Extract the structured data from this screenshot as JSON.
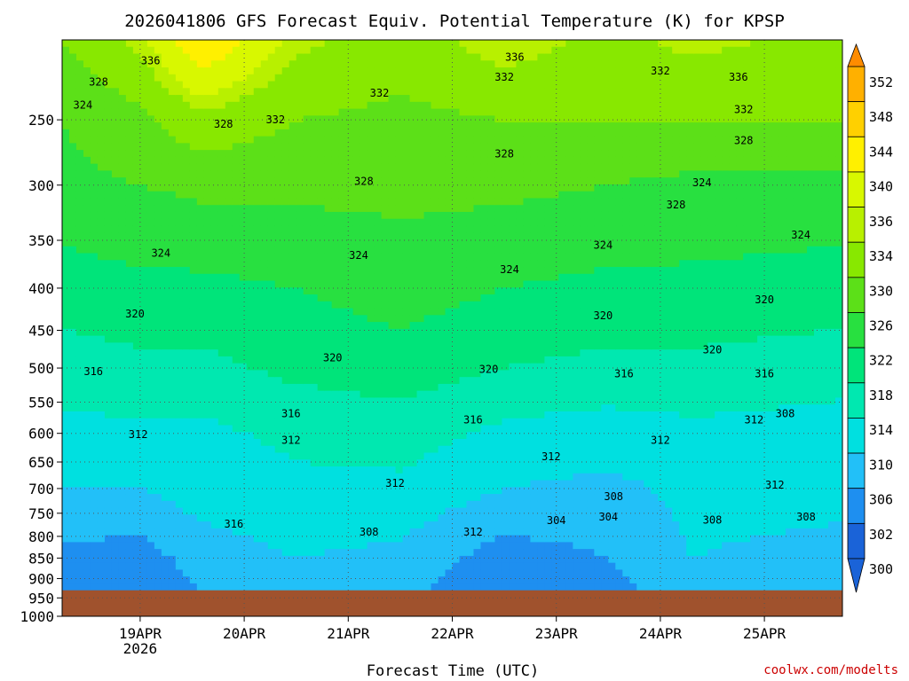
{
  "chart_data": {
    "type": "heatmap",
    "title": "2026041806 GFS Forecast Equiv. Potential Temperature (K) for KPSP",
    "xlabel": "Forecast Time (UTC)",
    "ylabel": "",
    "y_scale": "log (pressure, hPa)",
    "ylim": [
      1000,
      200
    ],
    "y_ticks": [
      {
        "value": 250,
        "label": "250"
      },
      {
        "value": 300,
        "label": "300"
      },
      {
        "value": 350,
        "label": "350"
      },
      {
        "value": 400,
        "label": "400"
      },
      {
        "value": 450,
        "label": "450"
      },
      {
        "value": 500,
        "label": "500"
      },
      {
        "value": 550,
        "label": "550"
      },
      {
        "value": 600,
        "label": "600"
      },
      {
        "value": 650,
        "label": "650"
      },
      {
        "value": 700,
        "label": "700"
      },
      {
        "value": 750,
        "label": "750"
      },
      {
        "value": 800,
        "label": "800"
      },
      {
        "value": 850,
        "label": "850"
      },
      {
        "value": 900,
        "label": "900"
      },
      {
        "value": 950,
        "label": "950"
      },
      {
        "value": 1000,
        "label": "1000"
      }
    ],
    "x_ticks": [
      {
        "day": 1,
        "label": "19APR",
        "sub": "2026"
      },
      {
        "day": 2,
        "label": "20APR"
      },
      {
        "day": 3,
        "label": "21APR"
      },
      {
        "day": 4,
        "label": "22APR"
      },
      {
        "day": 5,
        "label": "23APR"
      },
      {
        "day": 6,
        "label": "24APR"
      },
      {
        "day": 7,
        "label": "25APR"
      }
    ],
    "x_range_days": [
      0.25,
      7.75
    ],
    "grid": true,
    "surface_pressure": 930,
    "colorbar": {
      "levels": [
        300,
        302,
        306,
        310,
        314,
        318,
        322,
        326,
        330,
        334,
        336,
        340,
        344,
        348,
        352
      ],
      "tick_labels": [
        "352",
        "348",
        "344",
        "340",
        "336",
        "334",
        "330",
        "326",
        "322",
        "318",
        "314",
        "310",
        "306",
        "302",
        "300"
      ],
      "colors": {
        "300": "#1a63d8",
        "302": "#1e8ff0",
        "306": "#22c0f8",
        "310": "#00e0e0",
        "314": "#00e8b0",
        "318": "#00e47a",
        "322": "#28e040",
        "326": "#5ce018",
        "330": "#88e800",
        "334": "#b8f000",
        "336": "#d8f800",
        "340": "#fff000",
        "344": "#ffd000",
        "348": "#ffb000",
        "352": "#ff9a00"
      },
      "below_color": "#1a63d8",
      "above_color": "#ff8c00"
    },
    "surface_color": "#a0522d",
    "profiles": [
      {
        "time_days": 0.25,
        "pressures": [
          930,
          850,
          700,
          600,
          500,
          400,
          300,
          250,
          200
        ],
        "thetae": [
          304,
          305,
          310,
          313,
          316,
          320,
          325,
          326,
          330
        ]
      },
      {
        "time_days": 1.0,
        "pressures": [
          930,
          850,
          700,
          600,
          500,
          400,
          300,
          250,
          200
        ],
        "thetae": [
          303,
          304,
          310,
          313,
          317,
          321,
          326,
          329,
          335
        ]
      },
      {
        "time_days": 1.6,
        "pressures": [
          930,
          850,
          700,
          600,
          500,
          400,
          300,
          250,
          200
        ],
        "thetae": [
          306,
          308,
          312,
          313,
          317,
          321,
          327,
          333,
          344
        ]
      },
      {
        "time_days": 2.5,
        "pressures": [
          930,
          850,
          700,
          600,
          500,
          400,
          300,
          250,
          200
        ],
        "thetae": [
          308,
          310,
          313,
          315,
          319,
          322,
          327,
          330,
          335
        ]
      },
      {
        "time_days": 3.5,
        "pressures": [
          930,
          850,
          700,
          600,
          500,
          400,
          300,
          250,
          200
        ],
        "thetae": [
          307,
          309,
          313,
          316,
          320,
          324,
          327,
          329,
          332
        ]
      },
      {
        "time_days": 4.5,
        "pressures": [
          930,
          850,
          700,
          600,
          500,
          400,
          300,
          250,
          200
        ],
        "thetae": [
          303,
          304,
          310,
          313,
          318,
          322,
          327,
          330,
          336
        ]
      },
      {
        "time_days": 5.5,
        "pressures": [
          930,
          850,
          700,
          600,
          500,
          400,
          300,
          250,
          200
        ],
        "thetae": [
          304,
          306,
          309,
          312,
          317,
          321,
          326,
          330,
          333
        ]
      },
      {
        "time_days": 6.3,
        "pressures": [
          930,
          850,
          700,
          600,
          500,
          400,
          300,
          250,
          200
        ],
        "thetae": [
          309,
          310,
          311,
          313,
          317,
          321,
          325,
          330,
          335
        ]
      },
      {
        "time_days": 7.75,
        "pressures": [
          930,
          850,
          700,
          600,
          500,
          400,
          300,
          250,
          200
        ],
        "thetae": [
          308,
          309,
          311,
          312,
          316,
          320,
          325,
          330,
          333
        ]
      }
    ],
    "contour_labels": [
      {
        "text": "336",
        "day": 1.1,
        "p": 212
      },
      {
        "text": "328",
        "day": 0.6,
        "p": 225
      },
      {
        "text": "324",
        "day": 0.45,
        "p": 240
      },
      {
        "text": "328",
        "day": 1.8,
        "p": 253
      },
      {
        "text": "332",
        "day": 2.3,
        "p": 250
      },
      {
        "text": "332",
        "day": 3.3,
        "p": 232
      },
      {
        "text": "336",
        "day": 4.6,
        "p": 210
      },
      {
        "text": "332",
        "day": 4.5,
        "p": 222
      },
      {
        "text": "332",
        "day": 6.0,
        "p": 218
      },
      {
        "text": "336",
        "day": 6.75,
        "p": 222
      },
      {
        "text": "332",
        "day": 6.8,
        "p": 243
      },
      {
        "text": "328",
        "day": 4.5,
        "p": 275
      },
      {
        "text": "328",
        "day": 3.15,
        "p": 297
      },
      {
        "text": "328",
        "day": 6.8,
        "p": 265
      },
      {
        "text": "324",
        "day": 6.4,
        "p": 298
      },
      {
        "text": "328",
        "day": 6.15,
        "p": 317
      },
      {
        "text": "324",
        "day": 1.2,
        "p": 363
      },
      {
        "text": "324",
        "day": 3.1,
        "p": 365
      },
      {
        "text": "324",
        "day": 5.45,
        "p": 355
      },
      {
        "text": "324",
        "day": 4.55,
        "p": 380
      },
      {
        "text": "324",
        "day": 7.35,
        "p": 345
      },
      {
        "text": "320",
        "day": 0.95,
        "p": 430
      },
      {
        "text": "320",
        "day": 5.45,
        "p": 432
      },
      {
        "text": "320",
        "day": 7.0,
        "p": 413
      },
      {
        "text": "320",
        "day": 2.85,
        "p": 486
      },
      {
        "text": "320",
        "day": 4.35,
        "p": 502
      },
      {
        "text": "320",
        "day": 6.5,
        "p": 475
      },
      {
        "text": "316",
        "day": 0.55,
        "p": 505
      },
      {
        "text": "316",
        "day": 5.65,
        "p": 508
      },
      {
        "text": "316",
        "day": 7.0,
        "p": 508
      },
      {
        "text": "316",
        "day": 2.45,
        "p": 568
      },
      {
        "text": "316",
        "day": 4.2,
        "p": 578
      },
      {
        "text": "312",
        "day": 0.98,
        "p": 602
      },
      {
        "text": "312",
        "day": 2.45,
        "p": 612
      },
      {
        "text": "312",
        "day": 4.95,
        "p": 640
      },
      {
        "text": "312",
        "day": 6.0,
        "p": 612
      },
      {
        "text": "312",
        "day": 6.9,
        "p": 578
      },
      {
        "text": "308",
        "day": 7.2,
        "p": 568
      },
      {
        "text": "312",
        "day": 3.45,
        "p": 690
      },
      {
        "text": "312",
        "day": 7.1,
        "p": 693
      },
      {
        "text": "308",
        "day": 5.55,
        "p": 716
      },
      {
        "text": "316",
        "day": 1.9,
        "p": 773
      },
      {
        "text": "308",
        "day": 3.2,
        "p": 790
      },
      {
        "text": "312",
        "day": 4.2,
        "p": 790
      },
      {
        "text": "304",
        "day": 5.0,
        "p": 765
      },
      {
        "text": "304",
        "day": 5.5,
        "p": 758
      },
      {
        "text": "308",
        "day": 6.5,
        "p": 764
      },
      {
        "text": "308",
        "day": 7.4,
        "p": 758
      }
    ]
  },
  "credit": "coolwx.com/modelts"
}
